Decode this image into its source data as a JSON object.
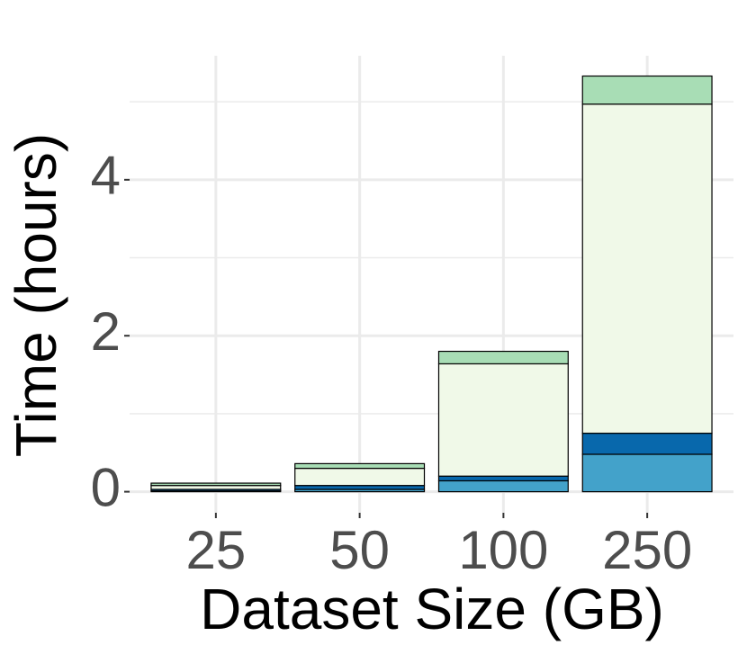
{
  "chart_data": {
    "type": "stacked-bar",
    "x_label": "Dataset Size (GB)",
    "y_label": "Time (hours)",
    "categories": [
      "25",
      "50",
      "100",
      "250"
    ],
    "series": [
      {
        "color": "#43a2ca",
        "values": [
          0.01,
          0.03,
          0.14,
          0.48
        ]
      },
      {
        "color": "#0868ac",
        "values": [
          0.02,
          0.05,
          0.06,
          0.27
        ]
      },
      {
        "color": "#f0f9e8",
        "values": [
          0.05,
          0.22,
          1.44,
          4.22
        ]
      },
      {
        "color": "#a8ddb5",
        "values": [
          0.03,
          0.06,
          0.16,
          0.36
        ]
      }
    ],
    "ylim": [
      -0.27,
      5.59
    ],
    "yticks": [
      0,
      2,
      4
    ],
    "y_minor_ticks": [
      1,
      3,
      5
    ],
    "grid": true
  }
}
